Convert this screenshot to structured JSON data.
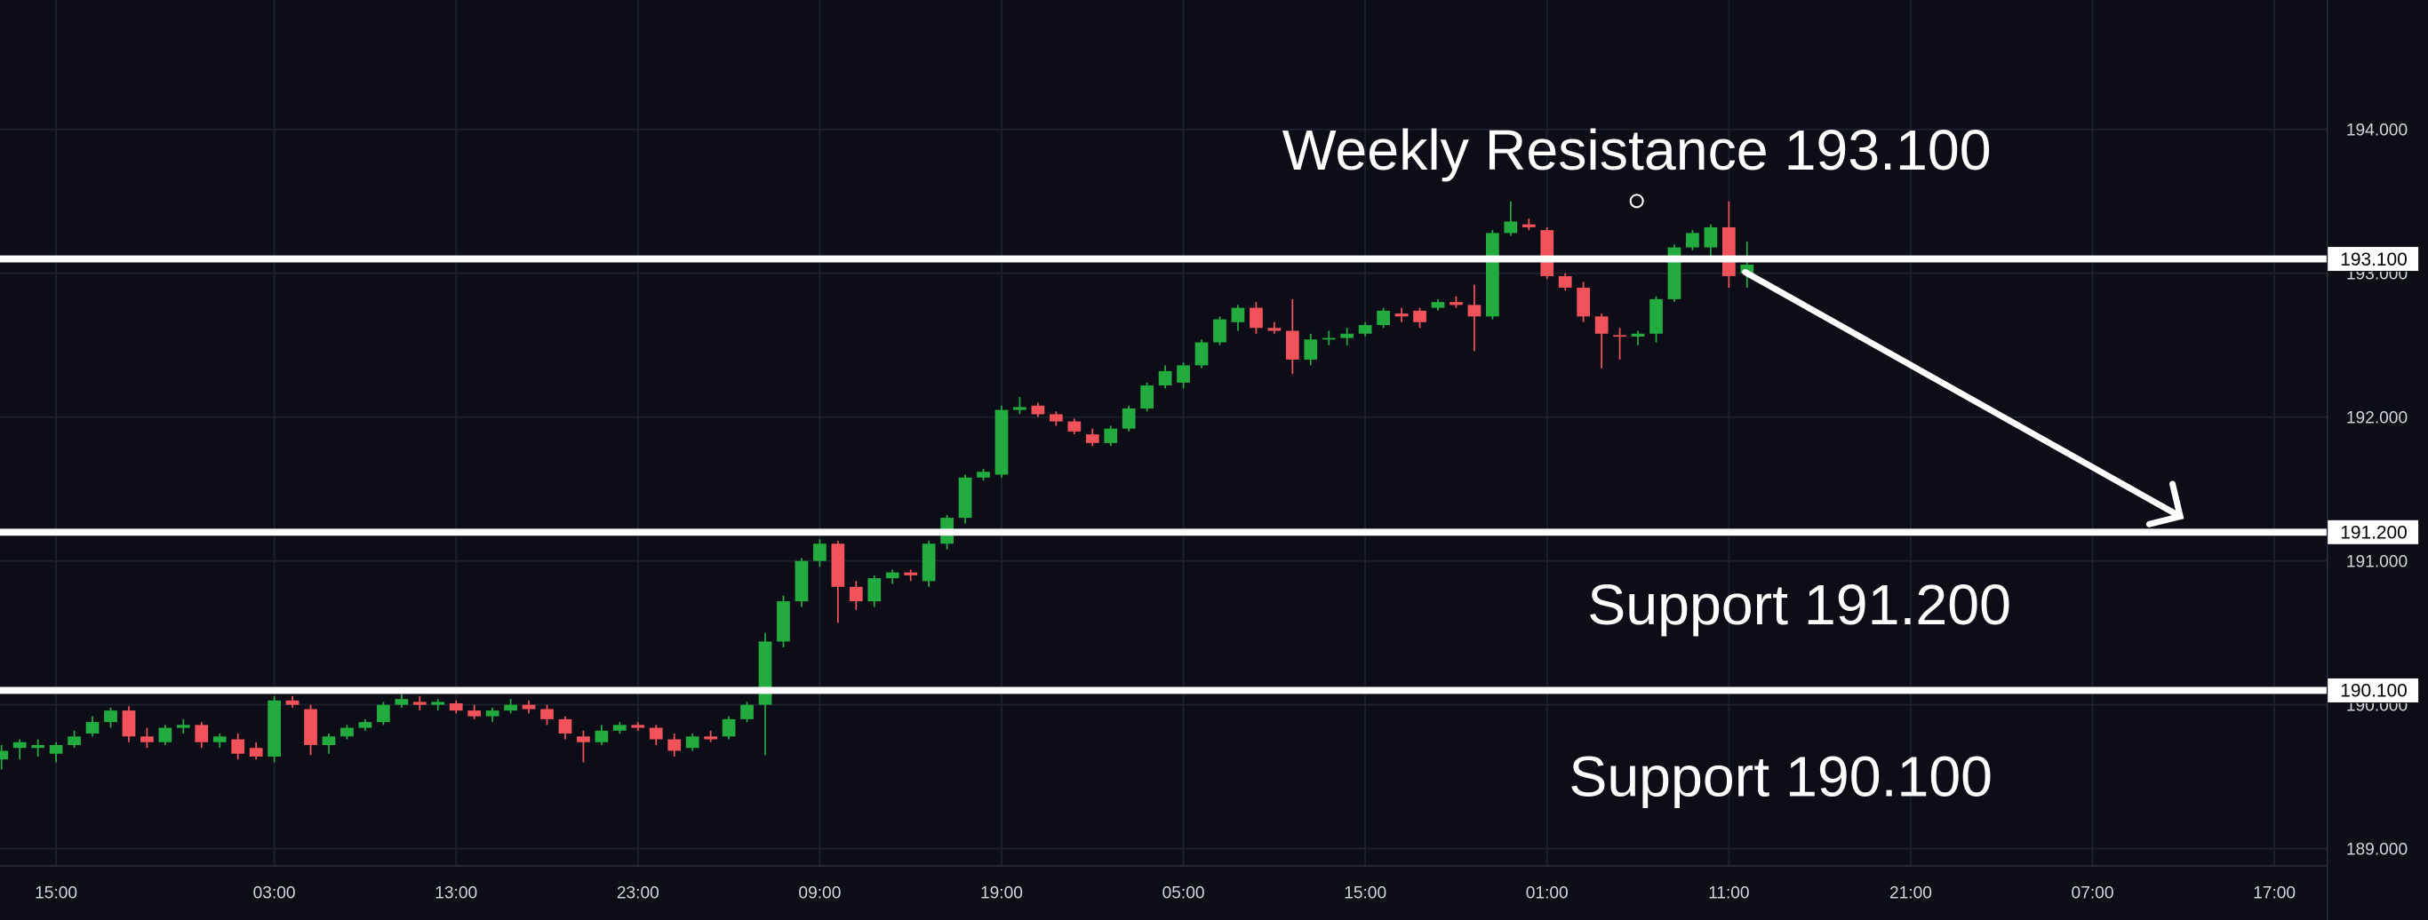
{
  "chart_data": {
    "type": "candlestick",
    "categories": [
      null,
      null,
      null,
      "15:00",
      null,
      null,
      null,
      null,
      null,
      null,
      null,
      null,
      null,
      null,
      null,
      "03:00",
      null,
      null,
      null,
      null,
      null,
      null,
      null,
      null,
      null,
      "13:00",
      null,
      null,
      null,
      null,
      null,
      null,
      null,
      null,
      null,
      "23:00",
      null,
      null,
      null,
      null,
      null,
      null,
      null,
      null,
      null,
      "09:00",
      null,
      null,
      null,
      null,
      null,
      null,
      null,
      null,
      null,
      "19:00",
      null,
      null,
      null,
      null,
      null,
      null,
      null,
      null,
      null,
      "05:00",
      null,
      null,
      null,
      null,
      null,
      null,
      null,
      null,
      null,
      "15:00",
      null,
      null,
      null,
      null,
      null,
      null,
      null,
      null,
      null,
      "01:00",
      null,
      null,
      null,
      null,
      null,
      null,
      null,
      null,
      null,
      "11:00",
      null,
      null,
      null,
      null,
      null,
      null,
      null,
      null,
      null,
      "21:00",
      null,
      null,
      null,
      null,
      null,
      null,
      null,
      null,
      null,
      "07:00",
      null,
      null,
      null,
      null,
      null,
      null,
      null,
      null,
      null,
      "17:00",
      null,
      null
    ],
    "series": [
      {
        "up_color": "#22ab3e",
        "down_color": "#f2535a",
        "open": [
          189.62,
          189.7,
          189.7,
          189.66,
          189.72,
          189.8,
          189.88,
          189.96,
          189.78,
          189.74,
          189.84,
          189.86,
          189.74,
          189.76,
          189.7,
          189.64,
          190.03,
          189.97,
          189.72,
          189.78,
          189.84,
          189.88,
          190.0,
          190.02,
          190.0,
          190.01,
          189.96,
          189.92,
          189.96,
          190.0,
          189.97,
          189.9,
          189.78,
          189.74,
          189.82,
          189.86,
          189.84,
          189.76,
          189.7,
          189.78,
          189.78,
          189.9,
          190.0,
          190.44,
          190.72,
          191.0,
          191.12,
          190.82,
          190.72,
          190.88,
          190.92,
          190.86,
          191.12,
          191.3,
          191.58,
          191.6,
          192.05,
          192.08,
          192.02,
          191.97,
          191.88,
          191.82,
          191.92,
          192.06,
          192.22,
          192.24,
          192.36,
          192.52,
          192.66,
          192.76,
          192.62,
          192.6,
          192.4,
          192.54,
          192.55,
          192.58,
          192.64,
          192.72,
          192.74,
          192.76,
          192.8,
          192.78,
          192.7,
          193.28,
          193.34,
          193.3,
          192.98,
          192.9,
          192.7,
          192.57,
          192.56,
          192.58,
          192.82,
          193.18,
          193.18,
          193.32,
          193.0,
          null,
          null,
          null,
          null,
          null,
          null,
          null,
          null,
          null,
          null,
          null,
          null,
          null,
          null,
          null,
          null,
          null,
          null,
          null,
          null,
          null,
          null,
          null,
          null,
          null,
          null,
          null,
          null,
          null,
          null,
          null
        ],
        "high": [
          189.72,
          189.76,
          189.76,
          189.74,
          189.82,
          189.92,
          189.98,
          189.99,
          189.84,
          189.86,
          189.9,
          189.88,
          189.8,
          189.8,
          189.74,
          190.06,
          190.06,
          190.0,
          189.8,
          189.86,
          189.9,
          190.02,
          190.12,
          190.06,
          190.04,
          190.03,
          190.0,
          189.98,
          190.04,
          190.03,
          190.0,
          189.92,
          189.82,
          189.86,
          189.88,
          189.88,
          189.86,
          189.8,
          189.8,
          189.82,
          189.92,
          190.02,
          190.5,
          190.76,
          191.02,
          191.15,
          191.14,
          190.86,
          190.9,
          190.94,
          190.94,
          191.14,
          191.32,
          191.6,
          191.64,
          192.08,
          192.14,
          192.1,
          192.04,
          191.99,
          191.92,
          191.94,
          192.08,
          192.24,
          192.36,
          192.38,
          192.54,
          192.7,
          192.78,
          192.8,
          192.66,
          192.82,
          192.58,
          192.6,
          192.62,
          192.66,
          192.76,
          192.76,
          192.76,
          192.82,
          192.84,
          192.92,
          193.3,
          193.5,
          193.38,
          193.32,
          193.0,
          192.94,
          192.72,
          192.62,
          192.6,
          192.84,
          193.2,
          193.3,
          193.34,
          193.5,
          193.22,
          null,
          null,
          null,
          null,
          null,
          null,
          null,
          null,
          null,
          null,
          null,
          null,
          null,
          null,
          null,
          null,
          null,
          null,
          null,
          null,
          null,
          null,
          null,
          null,
          null,
          null,
          null,
          null,
          null,
          null,
          null
        ],
        "low": [
          189.55,
          189.62,
          189.64,
          189.6,
          189.7,
          189.78,
          189.84,
          189.74,
          189.7,
          189.72,
          189.8,
          189.7,
          189.7,
          189.62,
          189.62,
          189.6,
          189.98,
          189.65,
          189.66,
          189.76,
          189.82,
          189.86,
          189.98,
          189.96,
          189.96,
          189.94,
          189.9,
          189.88,
          189.94,
          189.94,
          189.86,
          189.76,
          189.6,
          189.72,
          189.8,
          189.82,
          189.72,
          189.64,
          189.68,
          189.74,
          189.76,
          189.88,
          189.65,
          190.4,
          190.68,
          190.96,
          190.57,
          190.66,
          190.68,
          190.84,
          190.86,
          190.82,
          191.08,
          191.26,
          191.56,
          191.58,
          192.02,
          192.0,
          191.94,
          191.88,
          191.8,
          191.8,
          191.9,
          192.04,
          192.2,
          192.2,
          192.34,
          192.5,
          192.6,
          192.58,
          192.58,
          192.3,
          192.36,
          192.5,
          192.5,
          192.56,
          192.62,
          192.66,
          192.62,
          192.74,
          192.76,
          192.46,
          192.68,
          193.26,
          193.3,
          192.96,
          192.88,
          192.66,
          192.34,
          192.4,
          192.5,
          192.52,
          192.8,
          193.16,
          193.1,
          192.9,
          192.9,
          null,
          null,
          null,
          null,
          null,
          null,
          null,
          null,
          null,
          null,
          null,
          null,
          null,
          null,
          null,
          null,
          null,
          null,
          null,
          null,
          null,
          null,
          null,
          null,
          null,
          null,
          null,
          null,
          null,
          null,
          null
        ],
        "close": [
          189.68,
          189.74,
          189.72,
          189.72,
          189.78,
          189.88,
          189.96,
          189.78,
          189.74,
          189.84,
          189.86,
          189.74,
          189.78,
          189.66,
          189.64,
          190.03,
          190.0,
          189.72,
          189.78,
          189.84,
          189.88,
          190.0,
          190.04,
          190.0,
          190.02,
          189.96,
          189.92,
          189.96,
          190.0,
          189.97,
          189.9,
          189.8,
          189.74,
          189.82,
          189.86,
          189.84,
          189.76,
          189.68,
          189.78,
          189.76,
          189.9,
          190.0,
          190.44,
          190.72,
          191.0,
          191.12,
          190.82,
          190.72,
          190.88,
          190.92,
          190.9,
          191.12,
          191.3,
          191.58,
          191.62,
          192.05,
          192.07,
          192.02,
          191.97,
          191.9,
          191.82,
          191.92,
          192.06,
          192.22,
          192.32,
          192.36,
          192.52,
          192.68,
          192.76,
          192.62,
          192.6,
          192.4,
          192.54,
          192.55,
          192.58,
          192.64,
          192.74,
          192.7,
          192.66,
          192.8,
          192.78,
          192.7,
          193.28,
          193.36,
          193.32,
          192.98,
          192.9,
          192.7,
          192.58,
          192.56,
          192.58,
          192.82,
          193.18,
          193.28,
          193.32,
          192.98,
          193.06,
          null,
          null,
          null,
          null,
          null,
          null,
          null,
          null,
          null,
          null,
          null,
          null,
          null,
          null,
          null,
          null,
          null,
          null,
          null,
          null,
          null,
          null,
          null,
          null,
          null,
          null,
          null,
          null,
          null,
          null,
          null
        ]
      }
    ],
    "ylim": [
      188.88,
      194.9
    ],
    "yticks": [
      {
        "value": 189,
        "label": "189.000"
      },
      {
        "value": 190,
        "label": "190.000"
      },
      {
        "value": 191,
        "label": "191.000"
      },
      {
        "value": 192,
        "label": "192.000"
      },
      {
        "value": 193,
        "label": "193.000"
      },
      {
        "value": 194,
        "label": "194.000"
      }
    ],
    "grid": true,
    "levels": [
      {
        "value": 193.1,
        "label": "193.100",
        "text": "Weekly Resistance 193.100"
      },
      {
        "value": 191.2,
        "label": "191.200",
        "text": "Support 191.200"
      },
      {
        "value": 190.1,
        "label": "190.100",
        "text": "Support 190.100"
      }
    ]
  }
}
